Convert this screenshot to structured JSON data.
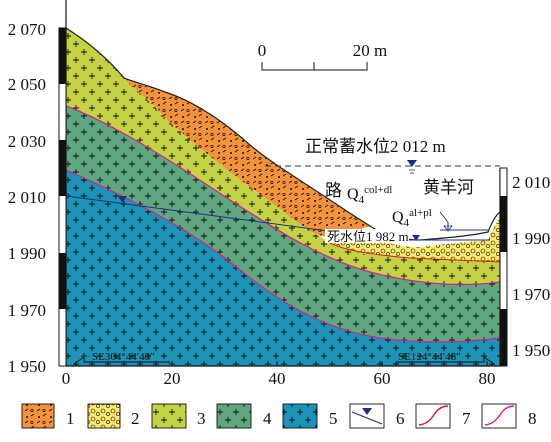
{
  "figure": {
    "left_axis_ticks": [
      "2 070",
      "2 050",
      "2 030",
      "2 010",
      "1 990",
      "1 970",
      "1 950"
    ],
    "right_axis_ticks": [
      "2 010",
      "1 990",
      "1 970",
      "1 950"
    ],
    "x_axis_ticks": [
      "0",
      "20",
      "40",
      "60",
      "80"
    ],
    "scale_bar": {
      "start": "0",
      "end": "20 m"
    },
    "direction_left": "SE304°44′48″",
    "direction_right": "SE124°44′48″"
  },
  "annotations": {
    "normal_level_prefix": "正常蓄水位",
    "normal_level_value": "2 012 m",
    "dead_level_prefix": "死水位",
    "dead_level_value": "1 982 m",
    "road": "路",
    "river": "黄羊河",
    "q_colluvial_base": "Q",
    "q_colluvial_sub": "4",
    "q_colluvial_sup": "col+dl",
    "q_alluvial_base": "Q",
    "q_alluvial_sub": "4",
    "q_alluvial_sup": "al+pl"
  },
  "legend": [
    {
      "number": "1",
      "color": "#f5923a",
      "icon": "colluvial-debris-pattern"
    },
    {
      "number": "2",
      "color": "#fde96a",
      "icon": "gravel-pattern"
    },
    {
      "number": "3",
      "color": "#c5d243",
      "icon": "granite-plus-pattern"
    },
    {
      "number": "4",
      "color": "#5fa87f",
      "icon": "granite-plus-pattern"
    },
    {
      "number": "5",
      "color": "#1b94b8",
      "icon": "granite-plus-pattern"
    },
    {
      "number": "6",
      "color": "#1c2f86",
      "icon": "water-level-symbol"
    },
    {
      "number": "7",
      "color": "#d21f1f",
      "icon": "red-boundary-line"
    },
    {
      "number": "8",
      "color": "#d61f8e",
      "icon": "magenta-boundary-line"
    }
  ]
}
